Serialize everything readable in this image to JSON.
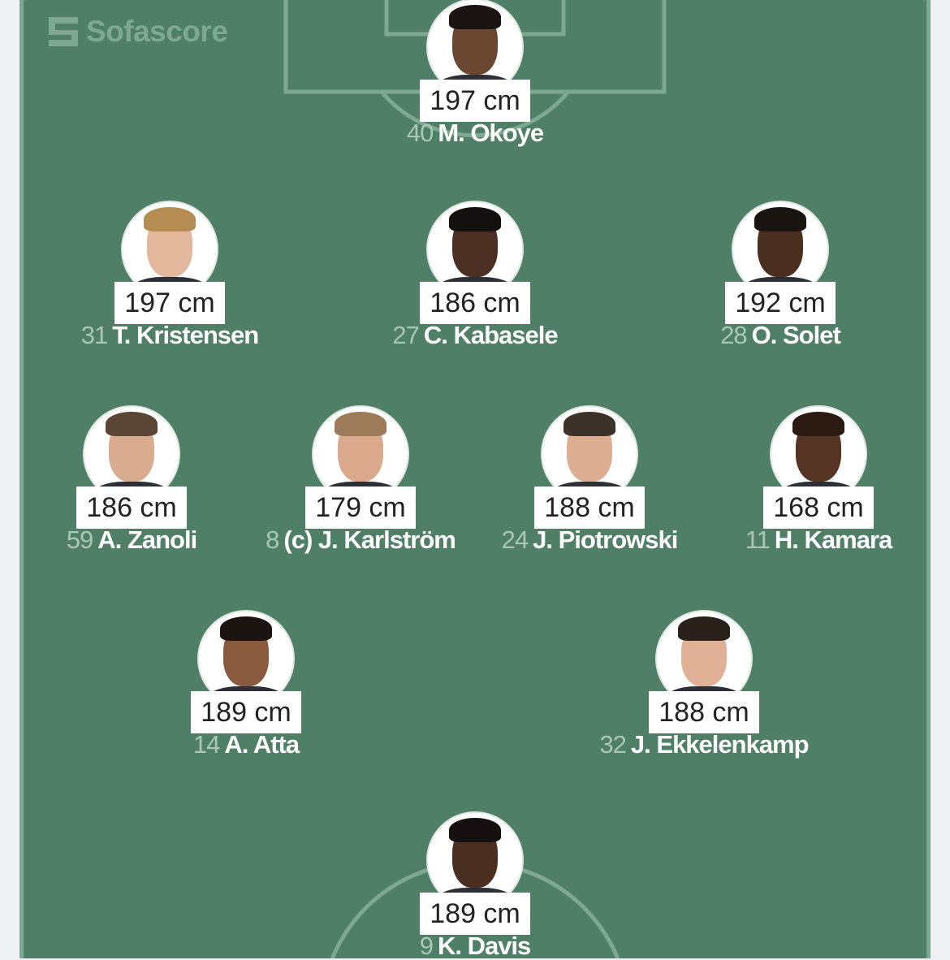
{
  "brand": {
    "name": "Sofascore"
  },
  "colors": {
    "pitch": "#4f7f66",
    "lines": "#7ea891",
    "number": "#a9c6b6"
  },
  "players": [
    {
      "number": "40",
      "name": "M. Okoye",
      "height": "197 cm",
      "skin": "#6b4630",
      "hair": "#1b1412"
    },
    {
      "number": "31",
      "name": "T. Kristensen",
      "height": "197 cm",
      "skin": "#e3b79b",
      "hair": "#b58d52"
    },
    {
      "number": "27",
      "name": "C. Kabasele",
      "height": "186 cm",
      "skin": "#4b2f22",
      "hair": "#151010"
    },
    {
      "number": "28",
      "name": "O. Solet",
      "height": "192 cm",
      "skin": "#4a2e20",
      "hair": "#1a1410"
    },
    {
      "number": "59",
      "name": "A. Zanoli",
      "height": "186 cm",
      "skin": "#d9ab8f",
      "hair": "#5b4534"
    },
    {
      "number": "8",
      "name": "(c) J. Karlström",
      "height": "179 cm",
      "skin": "#dba98c",
      "hair": "#9d7a58"
    },
    {
      "number": "24",
      "name": "J. Piotrowski",
      "height": "188 cm",
      "skin": "#deae93",
      "hair": "#3d3229"
    },
    {
      "number": "11",
      "name": "H. Kamara",
      "height": "168 cm",
      "skin": "#553424",
      "hair": "#2a1a12"
    },
    {
      "number": "14",
      "name": "A. Atta",
      "height": "189 cm",
      "skin": "#8a5a3e",
      "hair": "#1b1411"
    },
    {
      "number": "32",
      "name": "J. Ekkelenkamp",
      "height": "188 cm",
      "skin": "#e0b196",
      "hair": "#2b211b"
    },
    {
      "number": "9",
      "name": "K. Davis",
      "height": "189 cm",
      "skin": "#4a2e20",
      "hair": "#161010"
    }
  ]
}
